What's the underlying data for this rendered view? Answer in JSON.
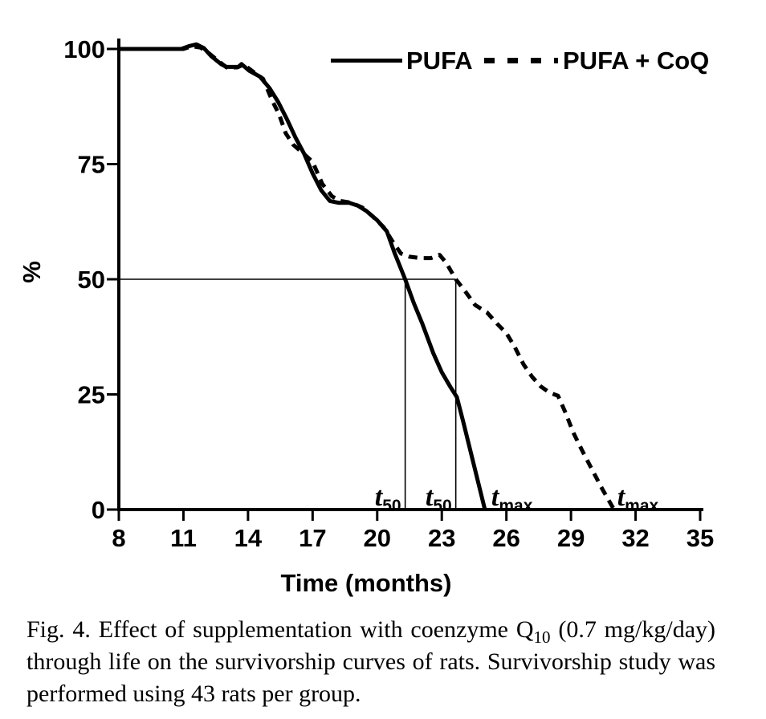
{
  "figure": {
    "caption": {
      "prefix": "Fig. 4. Effect of supplementation with coenzyme Q",
      "subscript": "10",
      "suffix": " (0.7 mg/kg/day) through life on the survivorship curves of rats. Survivorship study was performed using 43 rats per group."
    }
  },
  "colors": {
    "ink": "#000000",
    "background": "#ffffff"
  },
  "chart_data": {
    "type": "line",
    "title": "",
    "xlabel": "Time (months)",
    "ylabel": "%",
    "xlim": [
      8,
      35
    ],
    "ylim": [
      0,
      100
    ],
    "x_ticks": [
      8,
      11,
      14,
      17,
      20,
      23,
      26,
      29,
      32,
      35
    ],
    "y_ticks": [
      0,
      25,
      50,
      75,
      100
    ],
    "grid": false,
    "legend_position": "top-inside",
    "series": [
      {
        "name": "PUFA",
        "style": "solid",
        "points": [
          [
            8,
            100
          ],
          [
            10.9,
            100
          ],
          [
            11.25,
            100.6
          ],
          [
            11.6,
            101
          ],
          [
            11.95,
            100.2
          ],
          [
            12.3,
            98.4
          ],
          [
            12.75,
            96.7
          ],
          [
            13.0,
            96.1
          ],
          [
            13.55,
            96.1
          ],
          [
            13.7,
            96.7
          ],
          [
            14.05,
            95.3
          ],
          [
            14.55,
            94
          ],
          [
            15.0,
            91.5
          ],
          [
            15.4,
            88.5
          ],
          [
            15.8,
            84.8
          ],
          [
            16.2,
            80.8
          ],
          [
            16.6,
            77.3
          ],
          [
            17.0,
            73
          ],
          [
            17.4,
            69.3
          ],
          [
            17.8,
            67
          ],
          [
            18.2,
            66.6
          ],
          [
            18.7,
            66.6
          ],
          [
            19.1,
            66
          ],
          [
            19.5,
            64.8
          ],
          [
            20.0,
            62.8
          ],
          [
            20.45,
            60.4
          ],
          [
            20.8,
            55.8
          ],
          [
            21.3,
            50
          ],
          [
            21.7,
            44.8
          ],
          [
            22.1,
            40.3
          ],
          [
            22.6,
            34
          ],
          [
            23.0,
            29.8
          ],
          [
            23.4,
            26.6
          ],
          [
            23.7,
            24.4
          ],
          [
            24.0,
            19
          ],
          [
            25.0,
            0
          ]
        ]
      },
      {
        "name": "PUFA + CoQ",
        "style": "dashed",
        "points": [
          [
            8,
            100
          ],
          [
            11.0,
            100
          ],
          [
            11.4,
            100.6
          ],
          [
            11.8,
            100.3
          ],
          [
            12.2,
            99
          ],
          [
            12.6,
            97.5
          ],
          [
            13.0,
            96
          ],
          [
            13.5,
            96
          ],
          [
            13.8,
            96.6
          ],
          [
            14.2,
            95.2
          ],
          [
            14.7,
            93.5
          ],
          [
            15.1,
            89
          ],
          [
            15.45,
            85.7
          ],
          [
            15.75,
            81.7
          ],
          [
            16.1,
            79.2
          ],
          [
            16.6,
            77.2
          ],
          [
            17.0,
            75.5
          ],
          [
            17.45,
            70.7
          ],
          [
            17.9,
            68
          ],
          [
            18.3,
            67
          ],
          [
            18.8,
            66.6
          ],
          [
            19.3,
            65.6
          ],
          [
            19.8,
            63.6
          ],
          [
            20.3,
            61.3
          ],
          [
            20.7,
            58.3
          ],
          [
            21.1,
            55.6
          ],
          [
            21.5,
            54.9
          ],
          [
            22.0,
            54.6
          ],
          [
            22.5,
            54.6
          ],
          [
            22.9,
            55.3
          ],
          [
            23.2,
            53.6
          ],
          [
            23.65,
            50
          ],
          [
            24.1,
            47.3
          ],
          [
            24.55,
            44.4
          ],
          [
            25.1,
            42.8
          ],
          [
            25.6,
            40.2
          ],
          [
            26.0,
            38.3
          ],
          [
            26.4,
            35.2
          ],
          [
            26.8,
            31.5
          ],
          [
            27.2,
            28.8
          ],
          [
            27.6,
            26.7
          ],
          [
            28.0,
            25.4
          ],
          [
            28.4,
            24.7
          ],
          [
            28.75,
            21
          ],
          [
            29.1,
            16.8
          ],
          [
            29.5,
            13
          ],
          [
            30.0,
            8.5
          ],
          [
            30.45,
            4.5
          ],
          [
            31.0,
            0
          ]
        ]
      }
    ],
    "reference_lines": [
      {
        "key": "fifty-percent-line",
        "orientation": "horizontal",
        "value": 50,
        "from": 8,
        "to": 23.65
      },
      {
        "key": "t50-line-pufa",
        "orientation": "vertical",
        "value": 21.3,
        "from": 0,
        "to": 50
      },
      {
        "key": "t50-line-pufa-coq",
        "orientation": "vertical",
        "value": 23.65,
        "from": 0,
        "to": 50
      }
    ],
    "annotations": [
      {
        "key": "t50-pufa",
        "main": "t",
        "sub": "50",
        "month": 21.3,
        "anchor": "end",
        "dx": -5
      },
      {
        "key": "t50-pufa-coq",
        "main": "t",
        "sub": "50",
        "month": 23.65,
        "anchor": "end",
        "dx": -5
      },
      {
        "key": "tmax-pufa",
        "main": "t",
        "sub": "max",
        "month": 25.0,
        "anchor": "start",
        "dx": 8
      },
      {
        "key": "tmax-pufa-coq",
        "main": "t",
        "sub": "max",
        "month": 31.0,
        "anchor": "start",
        "dx": 4
      }
    ],
    "derived_markers": {
      "t50_months": {
        "PUFA": 21.3,
        "PUFA + CoQ": 23.7
      },
      "tmax_months": {
        "PUFA": 25,
        "PUFA + CoQ": 31
      }
    }
  }
}
